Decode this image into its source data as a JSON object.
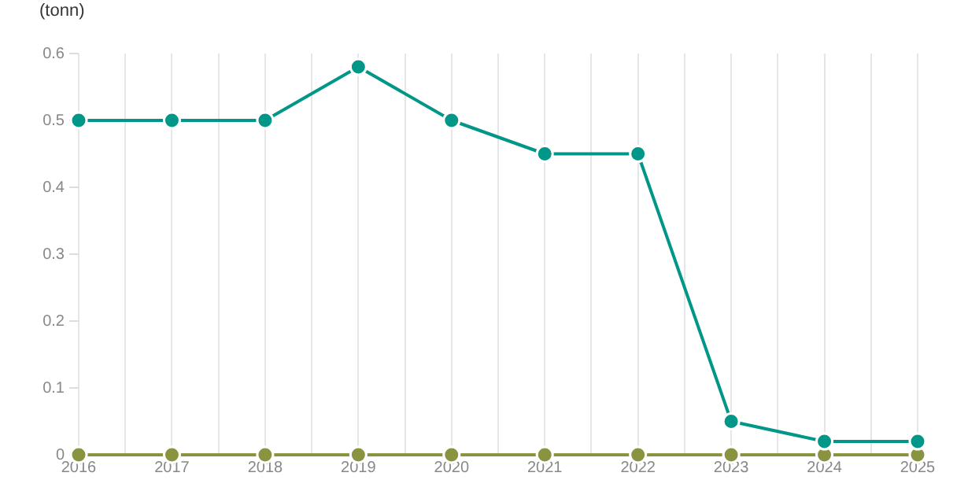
{
  "chart_data": {
    "type": "line",
    "ylabel": "(tonn)",
    "x": [
      2016,
      2017,
      2018,
      2019,
      2020,
      2021,
      2022,
      2023,
      2024,
      2025
    ],
    "series": [
      {
        "color": "#009688",
        "values": [
          0.5,
          0.5,
          0.5,
          0.58,
          0.5,
          0.45,
          0.45,
          0.05,
          0.02,
          0.02
        ]
      },
      {
        "color": "#8a9440",
        "values": [
          0,
          0,
          0,
          0,
          0,
          0,
          0,
          0,
          0,
          0
        ]
      }
    ],
    "xlim": [
      2016,
      2025
    ],
    "xticks": [
      2016,
      {
        "value": 2016.5,
        "label": null
      },
      2017,
      {
        "value": 2017.5,
        "label": null
      },
      2018,
      {
        "value": 2018.5,
        "label": null
      },
      2019,
      {
        "value": 2019.5,
        "label": null
      },
      2020,
      {
        "value": 2020.5,
        "label": null
      },
      2021,
      {
        "value": 2021.5,
        "label": null
      },
      2022,
      {
        "value": 2022.5,
        "label": null
      },
      2023,
      {
        "value": 2023.5,
        "label": null
      },
      2024,
      {
        "value": 2024.5,
        "label": null
      },
      2025
    ],
    "ylim": [
      0,
      0.6
    ],
    "yticks": [
      0,
      0.1,
      0.2,
      0.3,
      0.4,
      0.5,
      0.6
    ],
    "grid": "x",
    "legend": false,
    "marker": "circle",
    "line_style": "solid"
  }
}
